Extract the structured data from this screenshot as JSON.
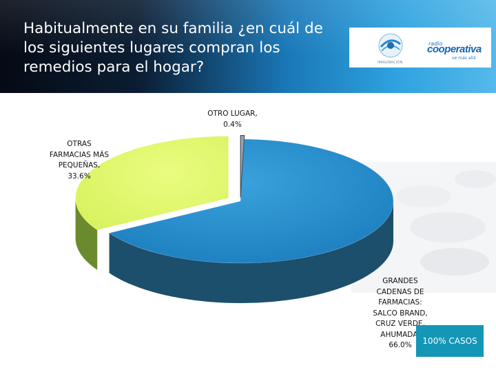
{
  "title": "Habitualmente en su familia ¿en cuál de los siguientes lugares compran los remedios para el hogar?",
  "logos": {
    "imaginacion": "IMAGINACIÓN",
    "radio": "radio",
    "cooperativa": "cooperativa",
    "tagline": "ve más allá"
  },
  "badge": "100% CASOS",
  "chart_data": {
    "type": "pie",
    "three_d": true,
    "legend": "none",
    "categories": [
      "GRANDES CADENAS DE FARMACIAS: SALCO BRAND, CRUZ VERDE, AHUMADA",
      "OTRAS FARMACIAS MÁS PEQUEÑAS",
      "OTRO LUGAR"
    ],
    "values": [
      66.0,
      33.6,
      0.4
    ],
    "unit": "%",
    "colors": [
      "#2a8fcf",
      "#e2f76a",
      "#9aa4ad"
    ],
    "side_colors": [
      "#1c4f6c",
      "#6b8a2e",
      "#5a6570"
    ],
    "labels": [
      {
        "lines": [
          "GRANDES",
          "CADENAS DE",
          "FARMACIAS:",
          "SALCO BRAND,",
          "CRUZ VERDE,",
          "AHUMADA,"
        ],
        "value": "66.0%"
      },
      {
        "lines": [
          "OTRAS",
          "FARMACIAS MÁS",
          "PEQUEÑAS,"
        ],
        "value": "33.6%"
      },
      {
        "lines": [
          "OTRO LUGAR,"
        ],
        "value": "0.4%"
      }
    ]
  }
}
